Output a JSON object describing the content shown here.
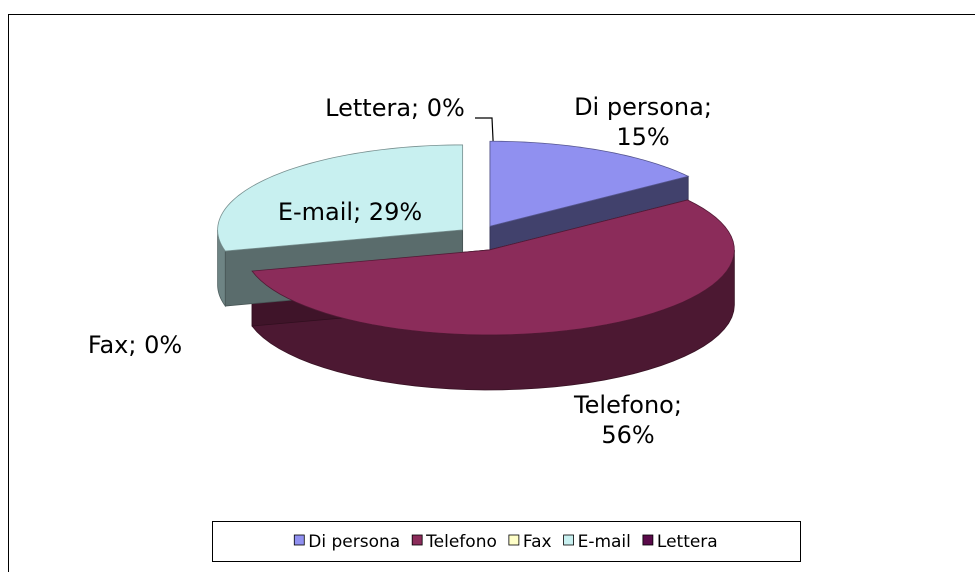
{
  "chart_data": {
    "type": "pie",
    "categories": [
      "Di persona",
      "Telefono",
      "Fax",
      "E-mail",
      "Lettera"
    ],
    "values": [
      15,
      56,
      0,
      29,
      0
    ],
    "value_labels": [
      "Di persona; 15%",
      "Telefono; 56%",
      "Fax; 0%",
      "E-mail; 29%",
      "Lettera; 0%"
    ],
    "colors": [
      "#9090f0",
      "#8b2c5a",
      "#ffffc8",
      "#c8f0f0",
      "#5a0a4a"
    ],
    "legend": "bottom"
  }
}
